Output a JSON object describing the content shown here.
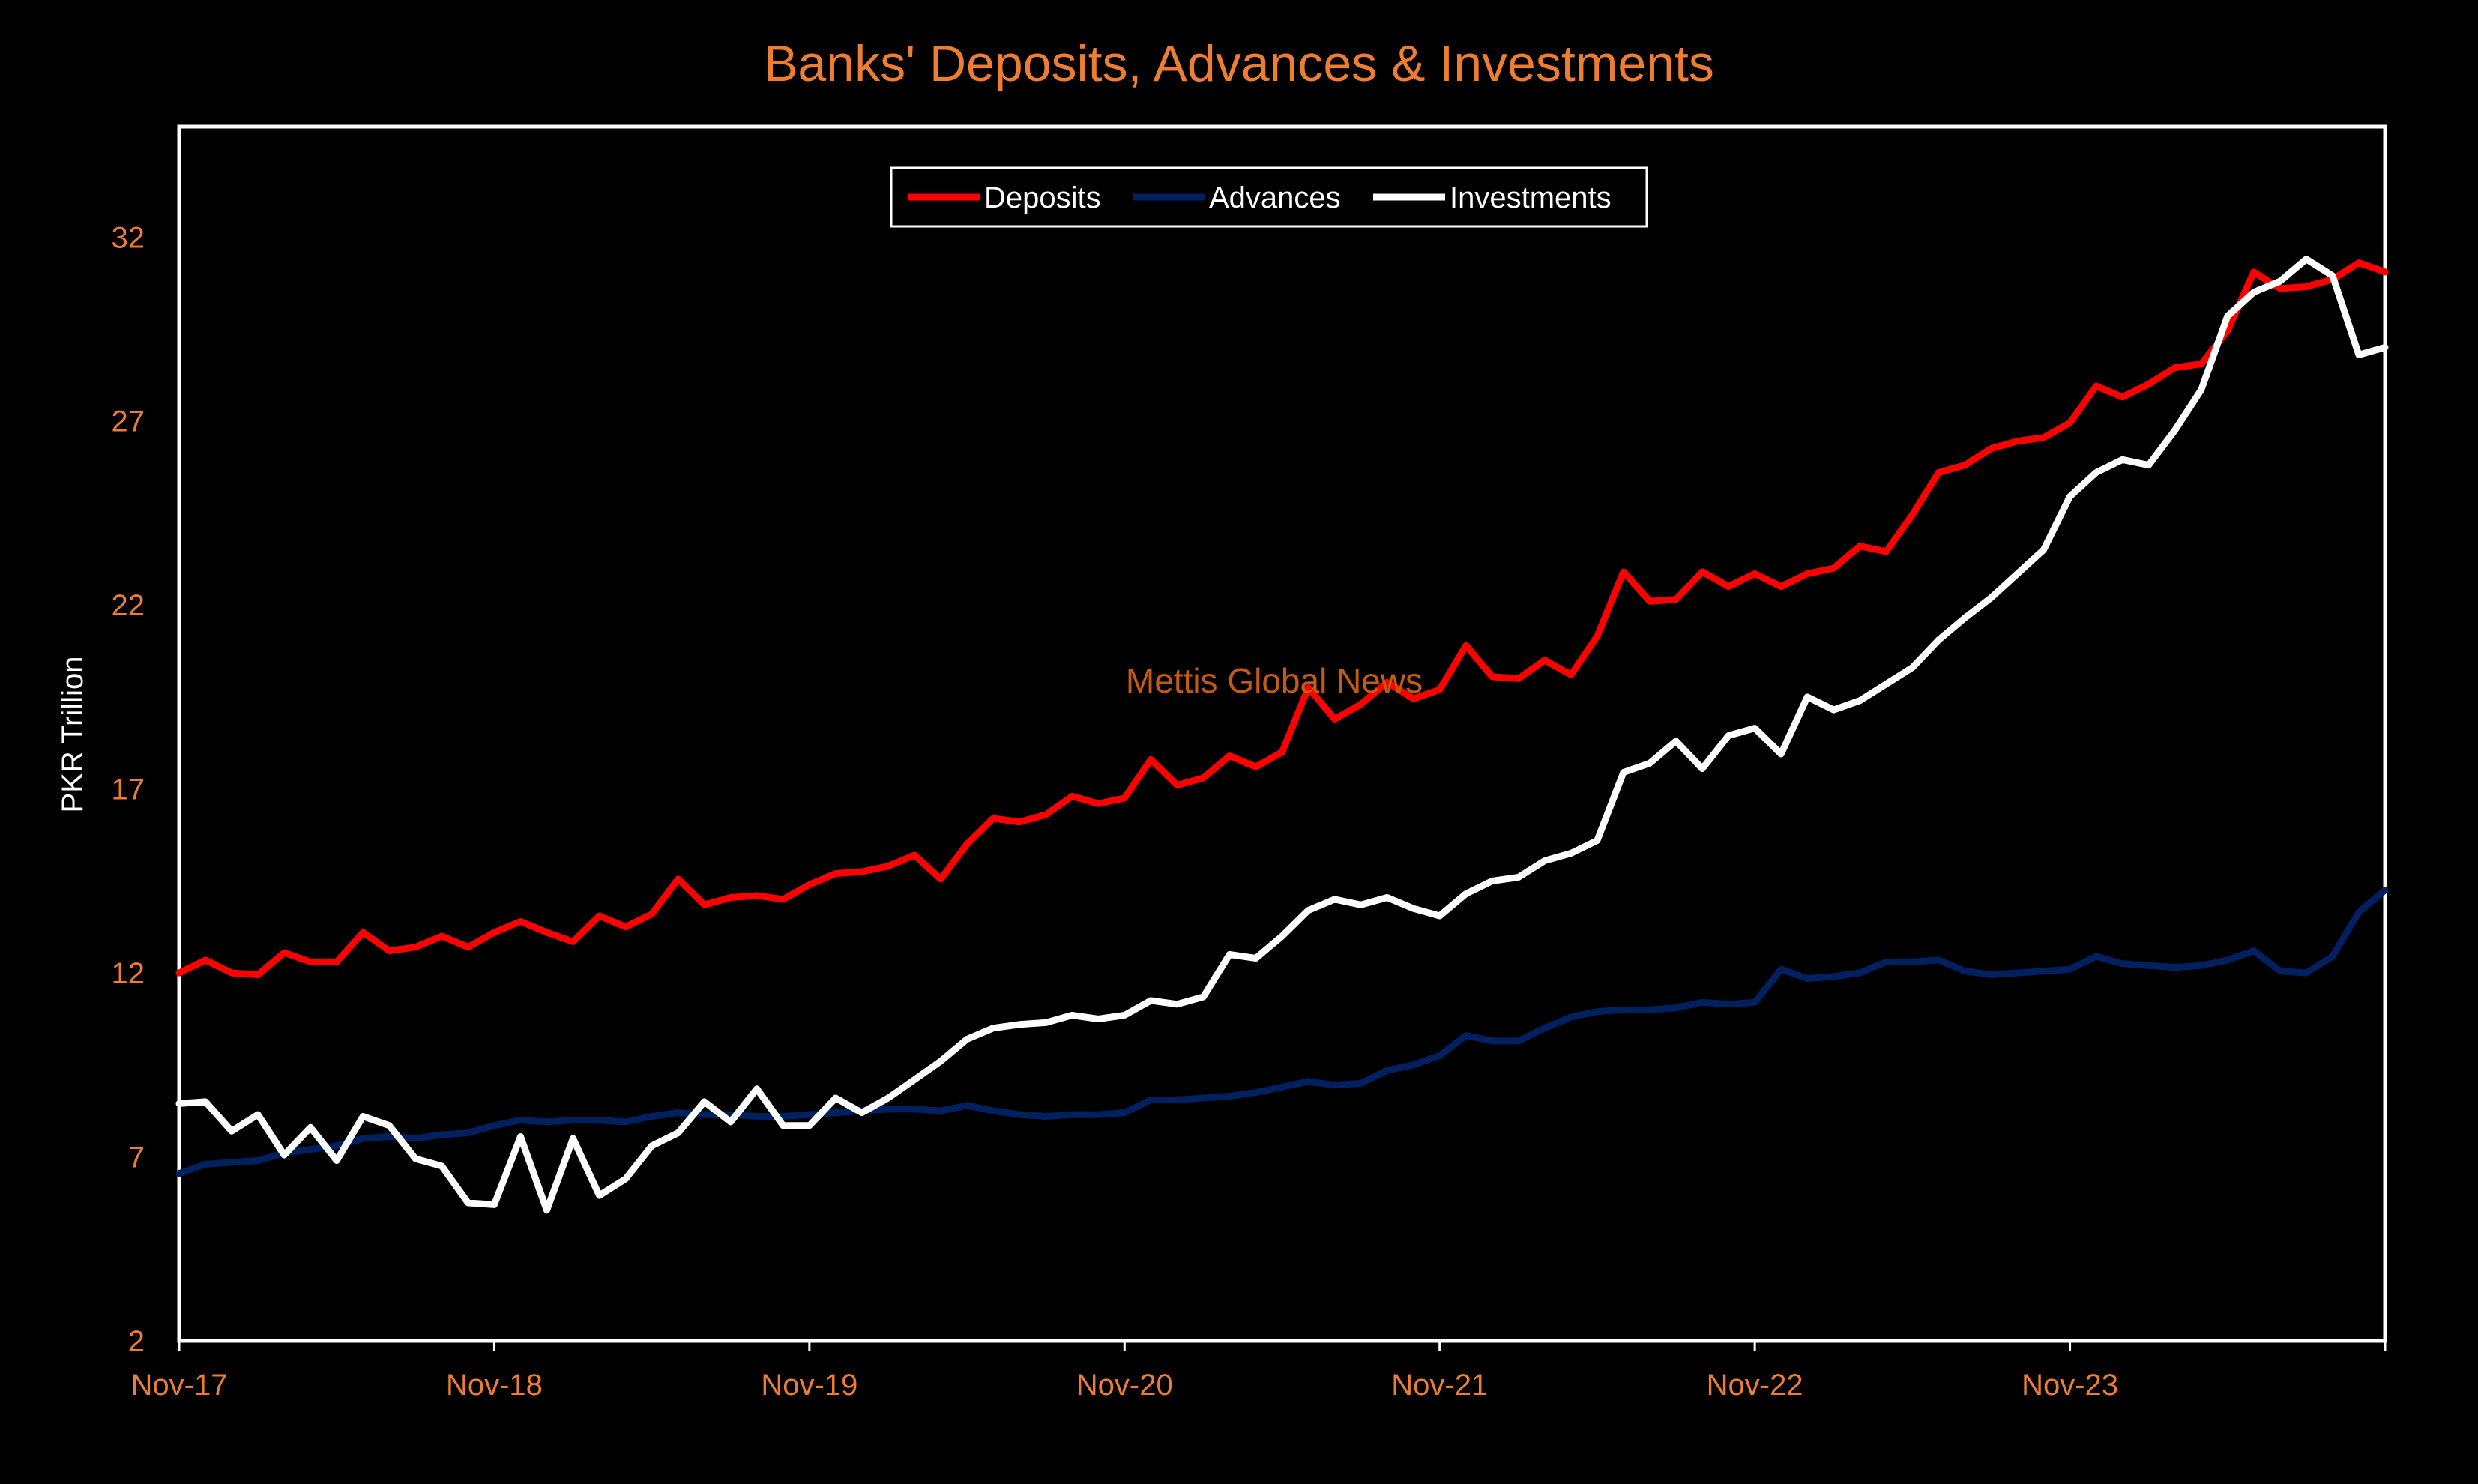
{
  "chart_data": {
    "type": "line",
    "title": "Banks' Deposits, Advances & Investments",
    "ylabel": "PKR Trillion",
    "xlabel": "",
    "ylim": [
      2,
      35
    ],
    "yticks": [
      2,
      7,
      12,
      17,
      22,
      27,
      32
    ],
    "xticks": [
      "Nov-17",
      "Nov-18",
      "Nov-19",
      "Nov-20",
      "Nov-21",
      "Nov-22",
      "Nov-23"
    ],
    "period": "monthly, Nov-17 to Dec-24",
    "grid": false,
    "legend_position": "top-center",
    "annotation": "Mettis Global News",
    "colors": {
      "background": "#000000",
      "accent": "#ed7d31",
      "frame": "#ffffff"
    },
    "series": [
      {
        "name": "Deposits",
        "color": "#ff0000",
        "values": [
          12.0,
          12.35,
          12.0,
          11.95,
          12.55,
          12.3,
          12.3,
          13.1,
          12.6,
          12.7,
          13.0,
          12.7,
          13.1,
          13.4,
          13.1,
          12.85,
          13.55,
          13.25,
          13.6,
          14.55,
          13.85,
          14.05,
          14.1,
          14.0,
          14.4,
          14.7,
          14.75,
          14.9,
          15.2,
          14.55,
          15.5,
          16.2,
          16.1,
          16.3,
          16.8,
          16.6,
          16.75,
          17.8,
          17.1,
          17.3,
          17.9,
          17.6,
          18.0,
          19.75,
          18.9,
          19.3,
          19.9,
          19.45,
          19.7,
          20.9,
          20.05,
          20.0,
          20.5,
          20.1,
          21.15,
          22.9,
          22.1,
          22.15,
          22.9,
          22.5,
          22.85,
          22.5,
          22.85,
          23.0,
          23.6,
          23.45,
          24.45,
          25.6,
          25.8,
          26.25,
          26.45,
          26.55,
          26.95,
          27.95,
          27.65,
          28.0,
          28.45,
          28.55,
          29.45,
          31.05,
          30.6,
          30.65,
          30.85,
          31.3,
          31.05
        ]
      },
      {
        "name": "Advances",
        "color": "#002060",
        "values": [
          6.55,
          6.8,
          6.85,
          6.9,
          7.1,
          7.2,
          7.3,
          7.5,
          7.55,
          7.5,
          7.6,
          7.65,
          7.85,
          8.0,
          7.95,
          8.0,
          8.0,
          7.95,
          8.1,
          8.2,
          8.15,
          8.15,
          8.1,
          8.1,
          8.15,
          8.2,
          8.25,
          8.3,
          8.3,
          8.25,
          8.4,
          8.25,
          8.15,
          8.1,
          8.15,
          8.15,
          8.2,
          8.55,
          8.55,
          8.6,
          8.65,
          8.75,
          8.9,
          9.05,
          8.95,
          9.0,
          9.35,
          9.5,
          9.75,
          10.3,
          10.15,
          10.15,
          10.5,
          10.8,
          10.95,
          11.0,
          11.0,
          11.05,
          11.2,
          11.15,
          11.2,
          12.1,
          11.85,
          11.9,
          12.0,
          12.3,
          12.3,
          12.35,
          12.05,
          11.95,
          12.0,
          12.05,
          12.1,
          12.45,
          12.25,
          12.2,
          12.15,
          12.2,
          12.35,
          12.6,
          12.05,
          12.0,
          12.45,
          13.65,
          14.25
        ]
      },
      {
        "name": "Investments",
        "color": "#ffffff",
        "values": [
          8.45,
          8.5,
          7.7,
          8.15,
          7.05,
          7.8,
          6.9,
          8.1,
          7.85,
          6.95,
          6.75,
          5.75,
          5.7,
          7.55,
          5.55,
          7.5,
          5.95,
          6.4,
          7.3,
          7.65,
          8.5,
          7.95,
          8.85,
          7.85,
          7.85,
          8.6,
          8.2,
          8.6,
          9.1,
          9.6,
          10.2,
          10.5,
          10.6,
          10.65,
          10.85,
          10.75,
          10.85,
          11.25,
          11.15,
          11.35,
          12.5,
          12.4,
          13.0,
          13.7,
          14.0,
          13.85,
          14.05,
          13.75,
          13.55,
          14.15,
          14.5,
          14.6,
          15.05,
          15.25,
          15.6,
          17.45,
          17.7,
          18.3,
          17.55,
          18.45,
          18.65,
          17.95,
          19.5,
          19.15,
          19.4,
          19.85,
          20.3,
          21.05,
          21.65,
          22.2,
          22.85,
          23.5,
          24.95,
          25.6,
          25.95,
          25.8,
          26.75,
          27.85,
          29.85,
          30.5,
          30.8,
          31.4,
          30.95,
          28.8,
          29.0
        ]
      }
    ]
  }
}
